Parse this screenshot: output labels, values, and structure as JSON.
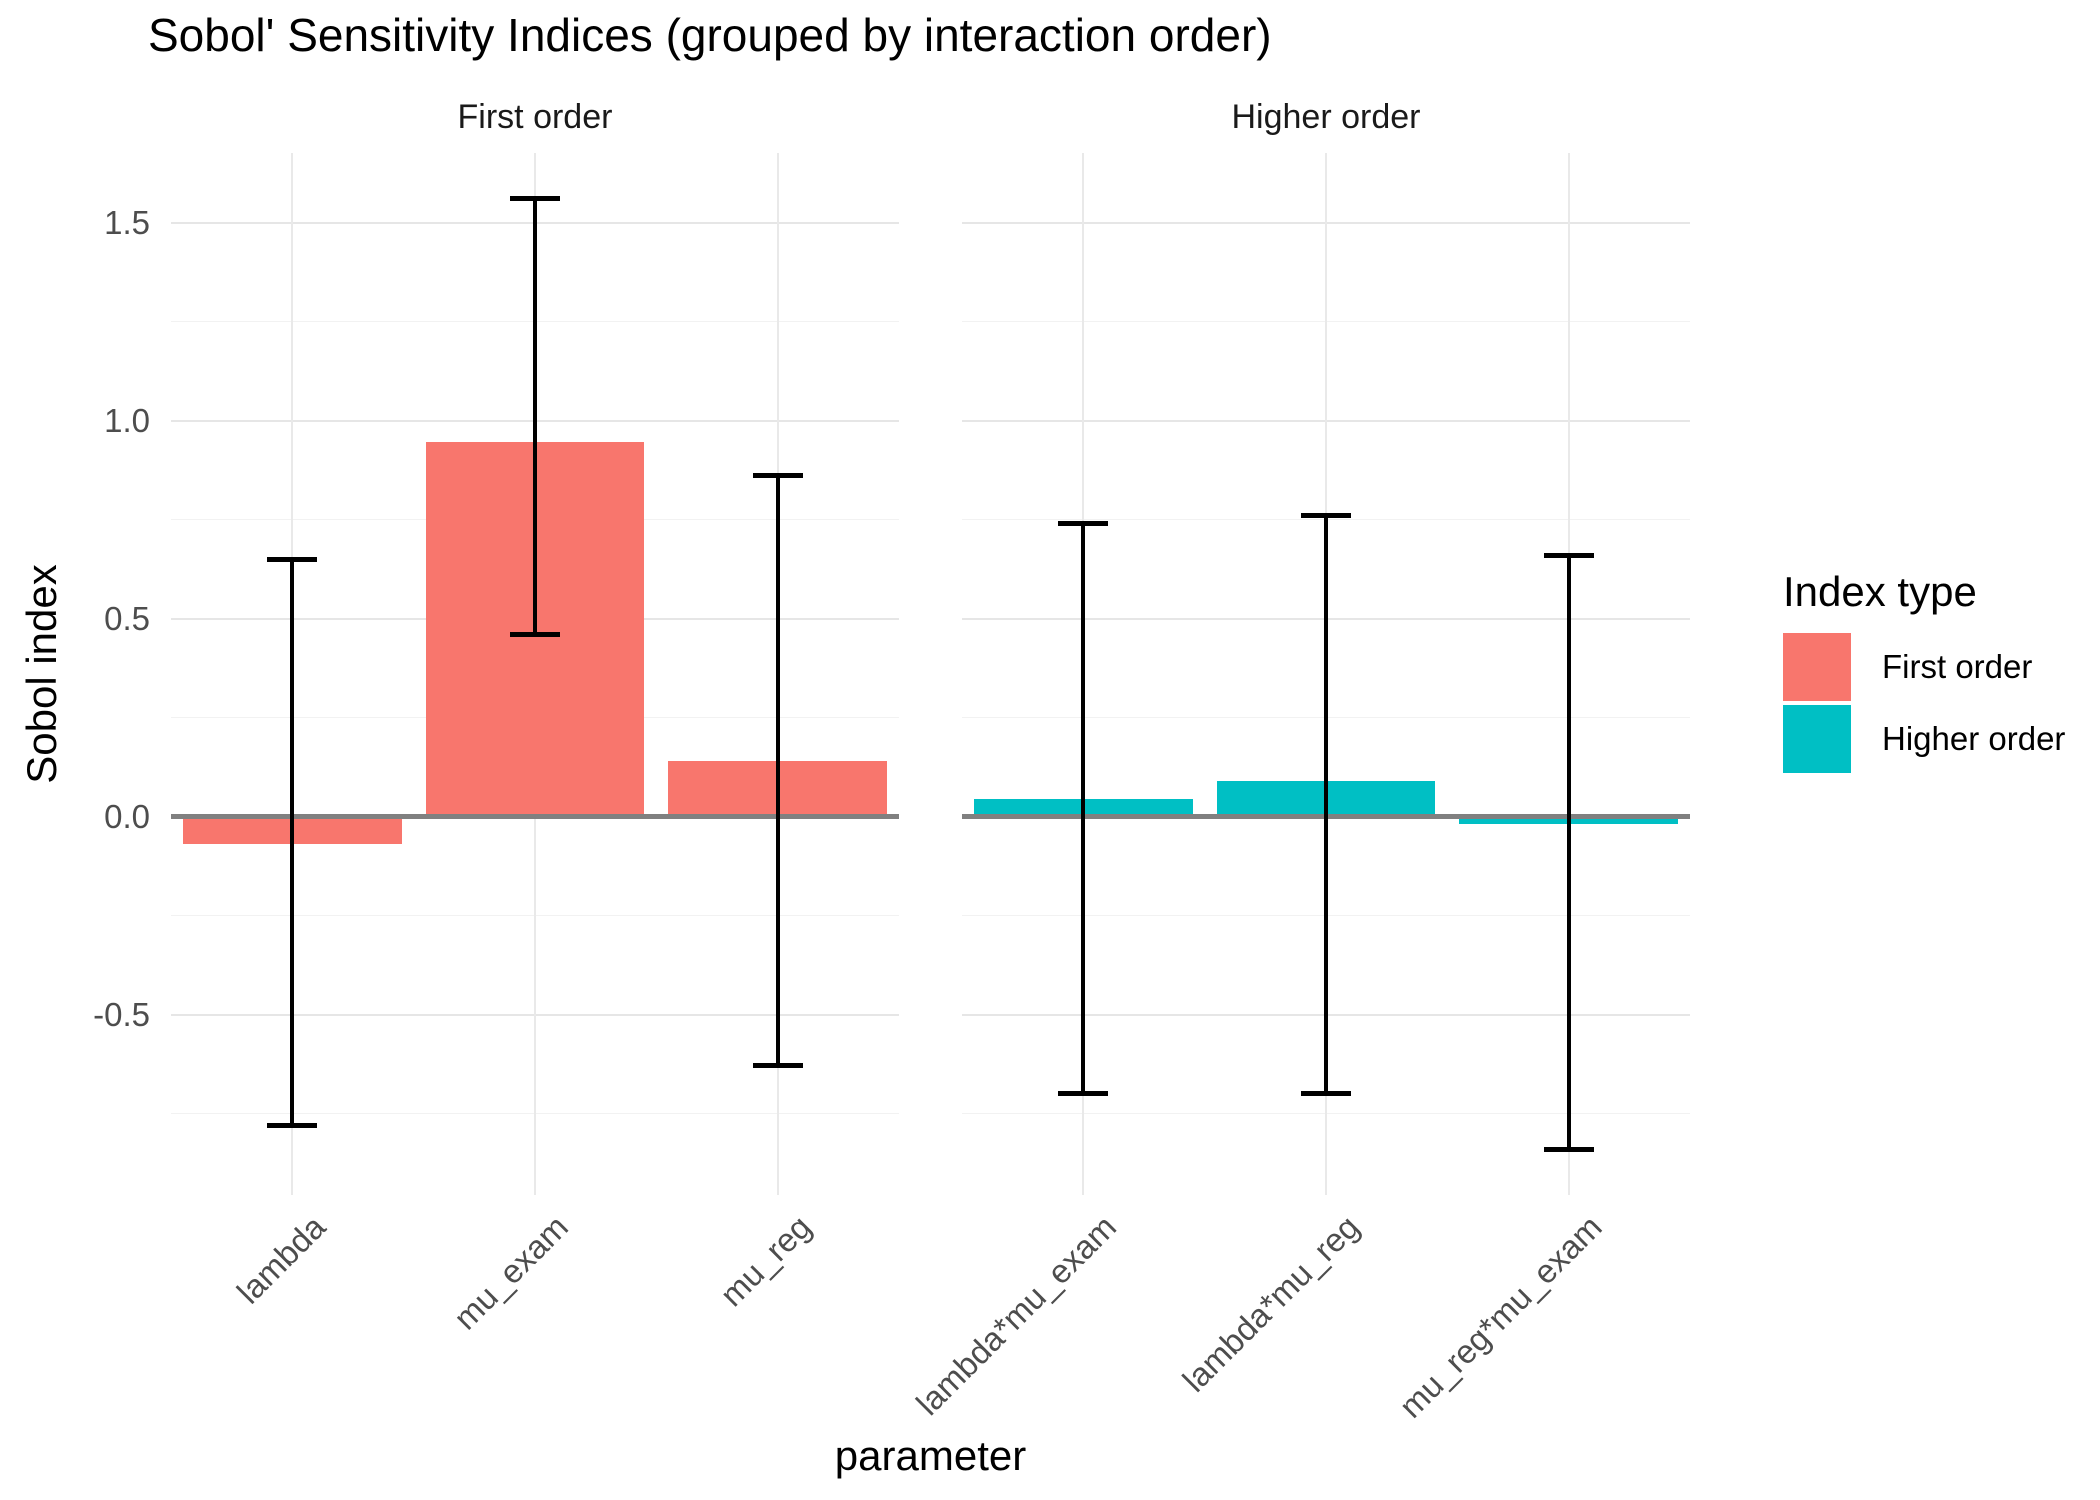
{
  "title": "Sobol' Sensitivity Indices (grouped by interaction order)",
  "axes": {
    "x_title": "parameter",
    "y_title": "Sobol index",
    "y_ticks": [
      {
        "label": "-0.5",
        "value": -0.5
      },
      {
        "label": "0.0",
        "value": 0.0
      },
      {
        "label": "0.5",
        "value": 0.5
      },
      {
        "label": "1.0",
        "value": 1.0
      },
      {
        "label": "1.5",
        "value": 1.5
      }
    ]
  },
  "legend": {
    "title": "Index type",
    "items": [
      {
        "label": "First order",
        "color": "#F8766D"
      },
      {
        "label": "Higher order",
        "color": "#00BFC4"
      }
    ]
  },
  "colors": {
    "first_order": "#F8766D",
    "higher_order": "#00BFC4",
    "zero_line": "#808080",
    "error_bar": "#000000",
    "grid_major": "#e6e6e6",
    "grid_minor": "#f2f2f2",
    "tick_text": "#4d4d4d",
    "strip_text": "#1a1a1a"
  },
  "chart_data": {
    "type": "bar",
    "title": "Sobol' Sensitivity Indices (grouped by interaction order)",
    "xlabel": "parameter",
    "ylabel": "Sobol index",
    "ylim": [
      -0.96,
      1.68
    ],
    "grid": true,
    "gridlines": {
      "major": [
        -0.5,
        0.0,
        0.5,
        1.0,
        1.5
      ],
      "minor": [
        -0.75,
        -0.25,
        0.25,
        0.75,
        1.25
      ]
    },
    "zero_line": 0,
    "error_bars": true,
    "legend_position": "right",
    "legend_title": "Index type",
    "facets": [
      {
        "label": "First order",
        "series": "First order",
        "color": "#F8766D",
        "bars": [
          {
            "category": "lambda",
            "value": -0.07,
            "ci_low": -0.78,
            "ci_high": 0.65
          },
          {
            "category": "mu_exam",
            "value": 0.945,
            "ci_low": 0.46,
            "ci_high": 1.56
          },
          {
            "category": "mu_reg",
            "value": 0.14,
            "ci_low": -0.63,
            "ci_high": 0.86
          }
        ]
      },
      {
        "label": "Higher order",
        "series": "Higher order",
        "color": "#00BFC4",
        "bars": [
          {
            "category": "lambda*mu_exam",
            "value": 0.045,
            "ci_low": -0.7,
            "ci_high": 0.74
          },
          {
            "category": "lambda*mu_reg",
            "value": 0.09,
            "ci_low": -0.7,
            "ci_high": 0.76
          },
          {
            "category": "mu_reg*mu_exam",
            "value": -0.02,
            "ci_low": -0.84,
            "ci_high": 0.66
          }
        ]
      }
    ]
  }
}
